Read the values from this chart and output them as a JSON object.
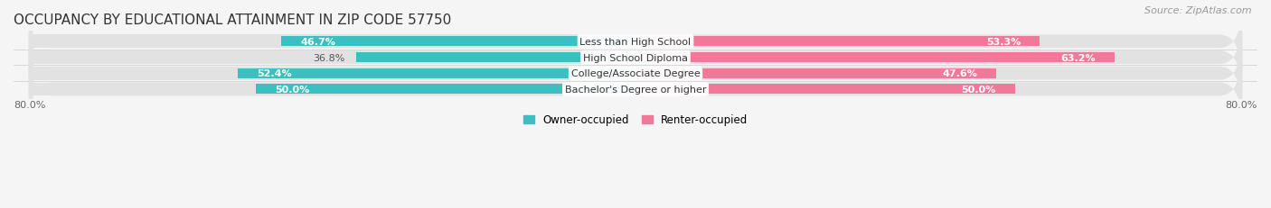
{
  "title": "OCCUPANCY BY EDUCATIONAL ATTAINMENT IN ZIP CODE 57750",
  "source": "Source: ZipAtlas.com",
  "categories": [
    "Less than High School",
    "High School Diploma",
    "College/Associate Degree",
    "Bachelor's Degree or higher"
  ],
  "owner_pct": [
    46.7,
    36.8,
    52.4,
    50.0
  ],
  "renter_pct": [
    53.3,
    63.2,
    47.6,
    50.0
  ],
  "owner_color": "#3bbfc0",
  "renter_color": "#f07898",
  "renter_color_light": "#f8b8c8",
  "bar_bg_color": "#e2e2e2",
  "background_color": "#f5f5f5",
  "x_left_label": "80.0%",
  "x_right_label": "80.0%",
  "owner_label": "Owner-occupied",
  "renter_label": "Renter-occupied",
  "title_fontsize": 11,
  "source_fontsize": 8,
  "bar_height": 0.62,
  "xlim_left": -80,
  "xlim_right": 80,
  "threshold_inside": 45
}
